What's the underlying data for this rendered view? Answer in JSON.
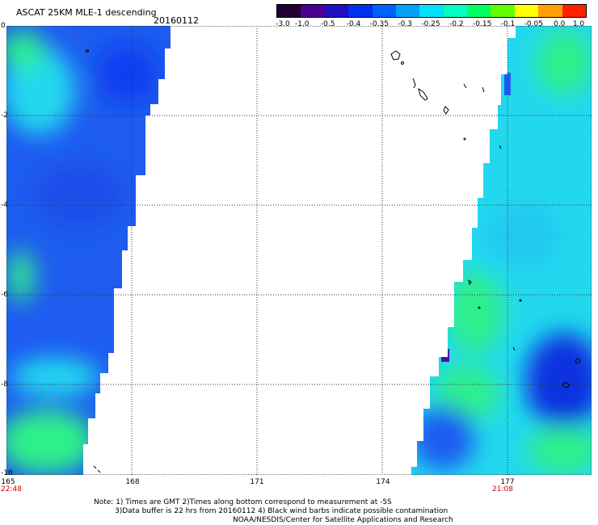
{
  "title": "ASCAT 25KM MLE-1 descending",
  "date": "20160112",
  "colorbar": {
    "labels": [
      "-3.0",
      "-1.0",
      "-0.5",
      "-0.4",
      "-0.35",
      "-0.3",
      "-0.25",
      "-0.2",
      "-0.15",
      "-0.1",
      "-0.05",
      "0.0",
      "1.0"
    ],
    "colors": [
      "#200030",
      "#4a0090",
      "#2010c0",
      "#0030f0",
      "#0060ff",
      "#00a0ff",
      "#00e0ff",
      "#00ffc0",
      "#00ff60",
      "#60ff00",
      "#ffff00",
      "#ffa000",
      "#ff2000"
    ]
  },
  "axes": {
    "lat_labels": [
      "0",
      "-2",
      "-4",
      "-6",
      "-8",
      "-10"
    ],
    "lon_labels": [
      "165",
      "168",
      "171",
      "174",
      "177"
    ]
  },
  "swath_times": {
    "left": "22:48",
    "right": "21:08"
  },
  "notes": {
    "line1": "Note: 1) Times are GMT 2)Times along bottom correspond to measurement at -5S",
    "line2": "3)Data buffer is 22 hrs from 20160112 4) Black wind barbs indicate possible contamination",
    "line3": "NOAA/NESDIS/Center for Satellite Applications and Research"
  },
  "map_colors": {
    "swath_blue": "#1e5cf0",
    "swath_cyan": "#22d8ee",
    "swath_green": "#2ef08a",
    "swath_deep_blue": "#1030e0",
    "swath_purple": "#5010b0",
    "grid_line": "#333333",
    "land_outline": "#000000"
  }
}
